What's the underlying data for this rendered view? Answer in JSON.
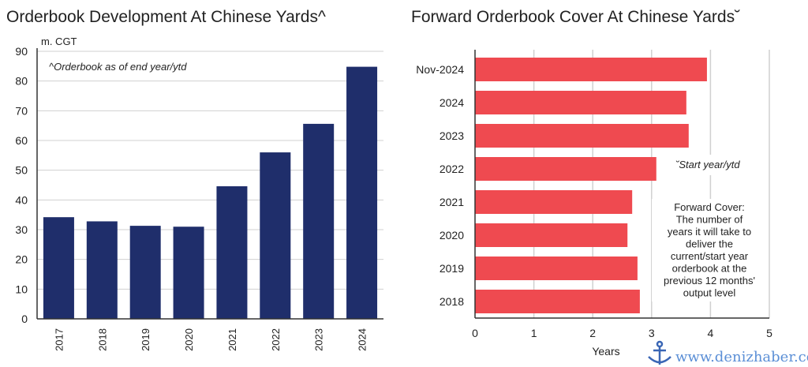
{
  "chart_data": [
    {
      "type": "bar",
      "orientation": "vertical",
      "title": "Orderbook Development At Chinese Yards^",
      "ylabel": "m. CGT",
      "annotation": "^Orderbook as of end year/ytd",
      "categories": [
        "2017",
        "2018",
        "2019",
        "2020",
        "2021",
        "2022",
        "2023",
        "2024"
      ],
      "values": [
        34.2,
        32.8,
        31.3,
        31.0,
        44.6,
        56.0,
        65.6,
        84.8
      ],
      "ylim": [
        0,
        90
      ],
      "yticks": [
        0,
        10,
        20,
        30,
        40,
        50,
        60,
        70,
        80,
        90
      ],
      "grid": true,
      "color": "#1f2e6b"
    },
    {
      "type": "bar",
      "orientation": "horizontal",
      "title": "Forward Orderbook Cover At Chinese Yards˘",
      "xlabel": "Years",
      "annotation": "˘Start year/ytd",
      "note": [
        "Forward Cover:",
        "The number of",
        "years it will take to",
        "deliver the",
        "current/start year",
        "orderbook at the",
        "previous 12 months'",
        "output level"
      ],
      "categories": [
        "Nov-2024",
        "2024",
        "2023",
        "2022",
        "2021",
        "2020",
        "2019",
        "2018"
      ],
      "values": [
        3.94,
        3.59,
        3.63,
        3.08,
        2.67,
        2.59,
        2.76,
        2.8
      ],
      "xlim": [
        0,
        5
      ],
      "xticks": [
        0,
        1,
        2,
        3,
        4,
        5
      ],
      "grid": true,
      "color": "#ef4a50"
    }
  ],
  "watermark": "www.denizhaber.com"
}
